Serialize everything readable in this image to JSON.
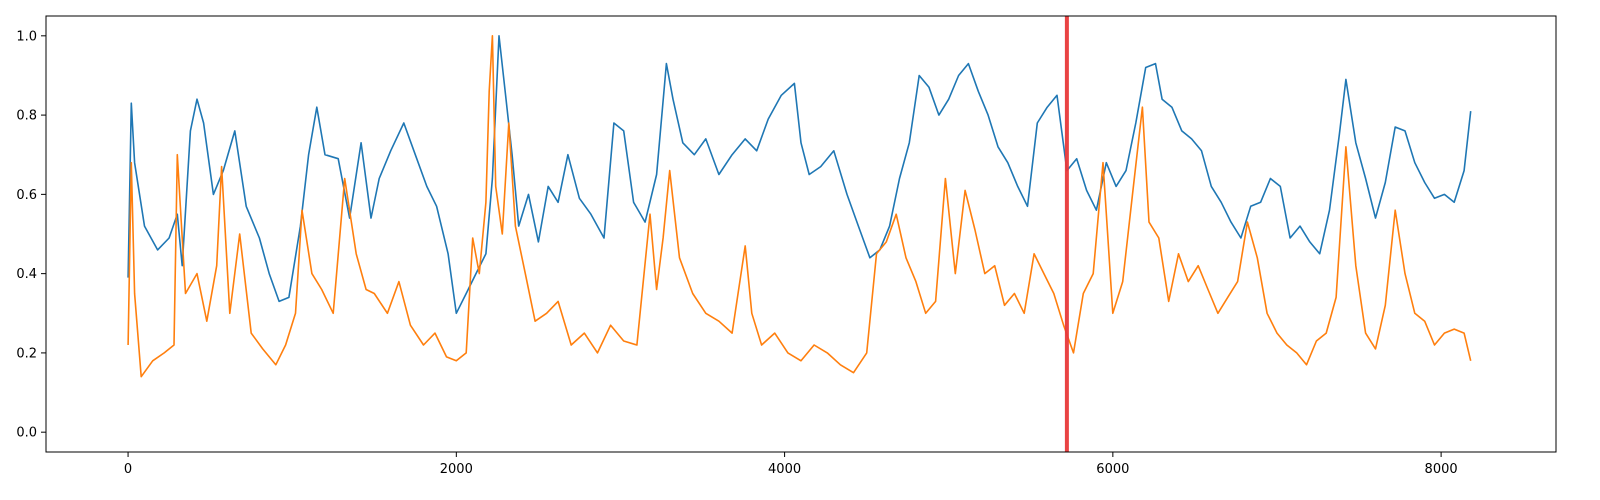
{
  "chart_data": {
    "type": "line",
    "title": "",
    "xlabel": "",
    "ylabel": "",
    "xlim": [
      -500,
      8700
    ],
    "ylim": [
      -0.05,
      1.05
    ],
    "grid": false,
    "legend": "none",
    "x_ticks": [
      {
        "value": 0,
        "label": "0"
      },
      {
        "value": 2000,
        "label": "2000"
      },
      {
        "value": 4000,
        "label": "4000"
      },
      {
        "value": 6000,
        "label": "6000"
      },
      {
        "value": 8000,
        "label": "8000"
      }
    ],
    "y_ticks": [
      {
        "value": 0.0,
        "label": "0.0"
      },
      {
        "value": 0.2,
        "label": "0.2"
      },
      {
        "value": 0.4,
        "label": "0.4"
      },
      {
        "value": 0.6,
        "label": "0.6"
      },
      {
        "value": 0.8,
        "label": "0.8"
      },
      {
        "value": 1.0,
        "label": "1.0"
      }
    ],
    "vertical_marker": {
      "x": 5720,
      "color": "#e8393b"
    },
    "series": [
      {
        "color": "#1f77b4",
        "x": [
          0,
          20,
          40,
          100,
          180,
          250,
          300,
          330,
          380,
          420,
          460,
          520,
          580,
          650,
          720,
          800,
          860,
          920,
          980,
          1050,
          1100,
          1150,
          1200,
          1280,
          1350,
          1420,
          1480,
          1530,
          1600,
          1680,
          1750,
          1820,
          1880,
          1950,
          2000,
          2060,
          2120,
          2180,
          2220,
          2260,
          2300,
          2340,
          2380,
          2440,
          2500,
          2560,
          2620,
          2680,
          2750,
          2820,
          2900,
          2960,
          3020,
          3080,
          3150,
          3220,
          3280,
          3320,
          3380,
          3450,
          3520,
          3600,
          3680,
          3760,
          3830,
          3900,
          3980,
          4060,
          4100,
          4150,
          4220,
          4300,
          4380,
          4450,
          4520,
          4580,
          4640,
          4700,
          4760,
          4820,
          4880,
          4940,
          5000,
          5060,
          5120,
          5180,
          5240,
          5300,
          5360,
          5420,
          5480,
          5540,
          5600,
          5660,
          5720,
          5780,
          5840,
          5900,
          5960,
          6020,
          6080,
          6140,
          6200,
          6260,
          6300,
          6360,
          6420,
          6480,
          6540,
          6600,
          6660,
          6720,
          6780,
          6840,
          6900,
          6960,
          7020,
          7080,
          7140,
          7200,
          7260,
          7320,
          7380,
          7420,
          7480,
          7540,
          7600,
          7660,
          7720,
          7780,
          7840,
          7900,
          7960,
          8020,
          8080,
          8140,
          8180
        ],
        "values": [
          0.39,
          0.83,
          0.68,
          0.52,
          0.46,
          0.49,
          0.55,
          0.42,
          0.76,
          0.84,
          0.78,
          0.6,
          0.66,
          0.76,
          0.57,
          0.49,
          0.4,
          0.33,
          0.34,
          0.52,
          0.7,
          0.82,
          0.7,
          0.69,
          0.54,
          0.73,
          0.54,
          0.64,
          0.71,
          0.78,
          0.7,
          0.62,
          0.57,
          0.45,
          0.3,
          0.35,
          0.4,
          0.45,
          0.64,
          1.0,
          0.85,
          0.7,
          0.52,
          0.6,
          0.48,
          0.62,
          0.58,
          0.7,
          0.59,
          0.55,
          0.49,
          0.78,
          0.76,
          0.58,
          0.53,
          0.65,
          0.93,
          0.84,
          0.73,
          0.7,
          0.74,
          0.65,
          0.7,
          0.74,
          0.71,
          0.79,
          0.85,
          0.88,
          0.73,
          0.65,
          0.67,
          0.71,
          0.6,
          0.52,
          0.44,
          0.46,
          0.52,
          0.64,
          0.73,
          0.9,
          0.87,
          0.8,
          0.84,
          0.9,
          0.93,
          0.86,
          0.8,
          0.72,
          0.68,
          0.62,
          0.57,
          0.78,
          0.82,
          0.85,
          0.66,
          0.69,
          0.61,
          0.56,
          0.68,
          0.62,
          0.66,
          0.78,
          0.92,
          0.93,
          0.84,
          0.82,
          0.76,
          0.74,
          0.71,
          0.62,
          0.58,
          0.53,
          0.49,
          0.57,
          0.58,
          0.64,
          0.62,
          0.49,
          0.52,
          0.48,
          0.45,
          0.56,
          0.75,
          0.89,
          0.73,
          0.64,
          0.54,
          0.63,
          0.77,
          0.76,
          0.68,
          0.63,
          0.59,
          0.6,
          0.58,
          0.66,
          0.81
        ]
      },
      {
        "color": "#ff7f0e",
        "x": [
          0,
          20,
          40,
          80,
          150,
          220,
          280,
          300,
          350,
          420,
          480,
          540,
          570,
          620,
          680,
          750,
          820,
          900,
          960,
          1020,
          1060,
          1120,
          1180,
          1250,
          1320,
          1390,
          1450,
          1500,
          1580,
          1650,
          1720,
          1800,
          1870,
          1940,
          2000,
          2060,
          2100,
          2140,
          2180,
          2200,
          2220,
          2240,
          2280,
          2320,
          2360,
          2420,
          2480,
          2550,
          2620,
          2700,
          2780,
          2860,
          2940,
          3020,
          3100,
          3180,
          3220,
          3260,
          3300,
          3360,
          3440,
          3520,
          3600,
          3680,
          3760,
          3800,
          3860,
          3940,
          4020,
          4100,
          4180,
          4260,
          4340,
          4420,
          4500,
          4560,
          4620,
          4680,
          4740,
          4800,
          4860,
          4920,
          4980,
          5040,
          5100,
          5160,
          5220,
          5280,
          5340,
          5400,
          5460,
          5520,
          5580,
          5640,
          5700,
          5760,
          5820,
          5880,
          5940,
          6000,
          6060,
          6120,
          6180,
          6220,
          6280,
          6340,
          6400,
          6460,
          6520,
          6580,
          6640,
          6700,
          6760,
          6820,
          6880,
          6940,
          7000,
          7060,
          7120,
          7180,
          7240,
          7300,
          7360,
          7420,
          7480,
          7540,
          7600,
          7660,
          7720,
          7780,
          7840,
          7900,
          7960,
          8020,
          8080,
          8140,
          8180
        ],
        "values": [
          0.22,
          0.68,
          0.35,
          0.14,
          0.18,
          0.2,
          0.22,
          0.7,
          0.35,
          0.4,
          0.28,
          0.42,
          0.67,
          0.3,
          0.5,
          0.25,
          0.21,
          0.17,
          0.22,
          0.3,
          0.56,
          0.4,
          0.36,
          0.3,
          0.64,
          0.45,
          0.36,
          0.35,
          0.3,
          0.38,
          0.27,
          0.22,
          0.25,
          0.19,
          0.18,
          0.2,
          0.49,
          0.4,
          0.58,
          0.86,
          1.0,
          0.62,
          0.5,
          0.78,
          0.52,
          0.4,
          0.28,
          0.3,
          0.33,
          0.22,
          0.25,
          0.2,
          0.27,
          0.23,
          0.22,
          0.55,
          0.36,
          0.49,
          0.66,
          0.44,
          0.35,
          0.3,
          0.28,
          0.25,
          0.47,
          0.3,
          0.22,
          0.25,
          0.2,
          0.18,
          0.22,
          0.2,
          0.17,
          0.15,
          0.2,
          0.45,
          0.48,
          0.55,
          0.44,
          0.38,
          0.3,
          0.33,
          0.64,
          0.4,
          0.61,
          0.51,
          0.4,
          0.42,
          0.32,
          0.35,
          0.3,
          0.45,
          0.4,
          0.35,
          0.27,
          0.2,
          0.35,
          0.4,
          0.68,
          0.3,
          0.38,
          0.6,
          0.82,
          0.53,
          0.49,
          0.33,
          0.45,
          0.38,
          0.42,
          0.36,
          0.3,
          0.34,
          0.38,
          0.53,
          0.44,
          0.3,
          0.25,
          0.22,
          0.2,
          0.17,
          0.23,
          0.25,
          0.34,
          0.72,
          0.42,
          0.25,
          0.21,
          0.32,
          0.56,
          0.4,
          0.3,
          0.28,
          0.22,
          0.25,
          0.26,
          0.25,
          0.18
        ]
      }
    ]
  }
}
